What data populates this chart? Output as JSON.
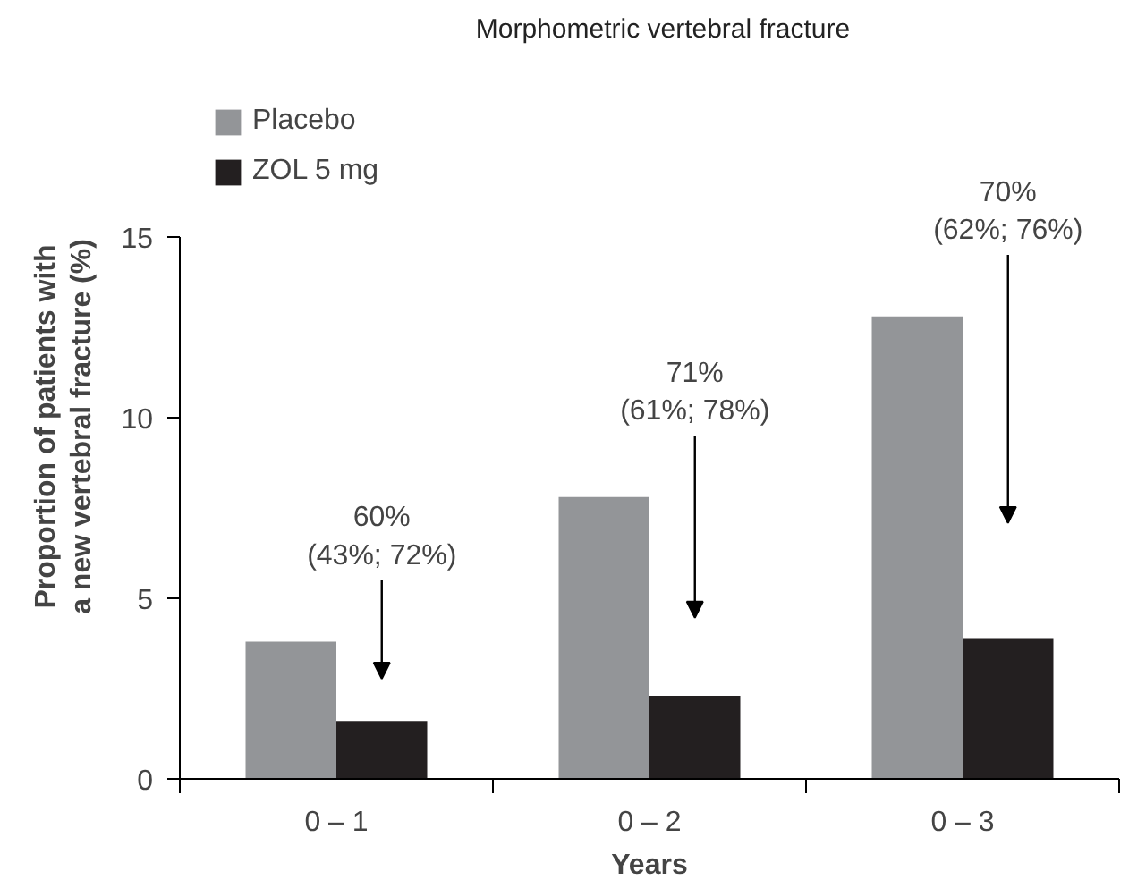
{
  "chart_data": {
    "type": "bar",
    "title": "Morphometric vertebral fracture",
    "xlabel": "Years",
    "ylabel": "Proportion of patients with\na new vertebral fracture (%)",
    "categories": [
      "0 – 1",
      "0 – 2",
      "0 – 3"
    ],
    "series": [
      {
        "name": "Placebo",
        "color": "#939598",
        "values": [
          3.8,
          7.8,
          12.8
        ]
      },
      {
        "name": "ZOL 5 mg",
        "color": "#231f20",
        "values": [
          1.6,
          2.3,
          3.9
        ]
      }
    ],
    "ylim": [
      0,
      15
    ],
    "yticks": [
      0,
      5,
      10,
      15
    ],
    "grid": false,
    "legend": "top left",
    "annotations": [
      "60%\n(43%; 72%)",
      "71%\n(61%; 78%)",
      "70%\n(62%; 76%)"
    ]
  }
}
